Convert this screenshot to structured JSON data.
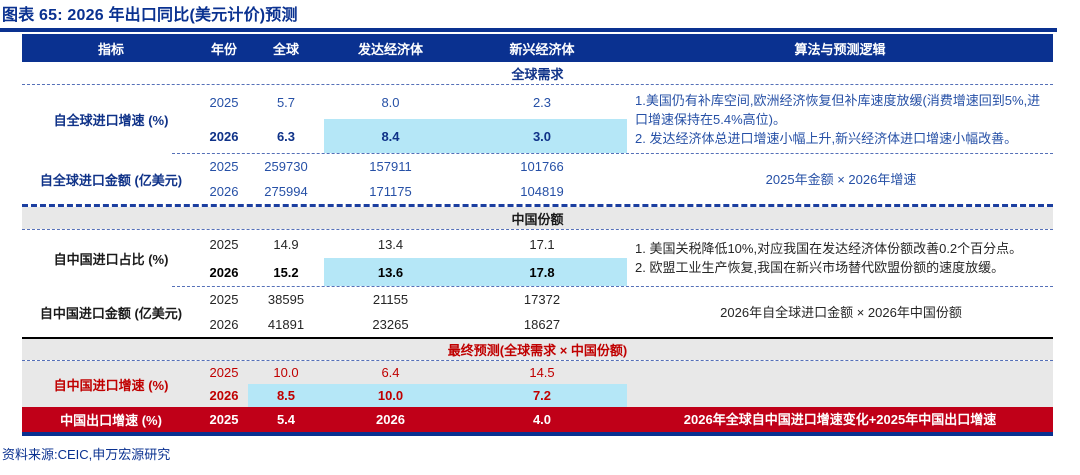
{
  "title": "图表 65:  2026 年出口同比(美元计价)预测",
  "source": "资料来源:CEIC,申万宏源研究",
  "colors": {
    "header_bg": "#0a3190",
    "highlight_cyan": "#b5e7f7",
    "section_gray": "#e8e8e8",
    "final_row_bg": "#c00018",
    "red_text": "#c00000",
    "blue_text": "#0f3288"
  },
  "table": {
    "headers": [
      "指标",
      "年份",
      "全球",
      "发达经济体",
      "新兴经济体",
      "算法与预测逻辑"
    ],
    "bands": {
      "global_demand": "全球需求",
      "china_share": "中国份额",
      "final_forecast": "最终预测(全球需求 × 中国份额)"
    },
    "groups": [
      {
        "indicator": "自全球进口增速 (%)",
        "rows": [
          {
            "year": "2025",
            "global": "5.7",
            "developed": "8.0",
            "emerging": "2.3"
          },
          {
            "year": "2026",
            "global": "6.3",
            "developed": "8.4",
            "emerging": "3.0"
          }
        ],
        "logic": [
          "1.美国仍有补库空间,欧洲经济恢复但补库速度放缓(消费增速回到5%,进口增速保持在5.4%高位)。",
          "2. 发达经济体总进口增速小幅上升,新兴经济体进口增速小幅改善。"
        ]
      },
      {
        "indicator": "自全球进口金额 (亿美元)",
        "rows": [
          {
            "year": "2025",
            "global": "259730",
            "developed": "157911",
            "emerging": "101766"
          },
          {
            "year": "2026",
            "global": "275994",
            "developed": "171175",
            "emerging": "104819"
          }
        ],
        "logic": [
          "2025年金额 × 2026年增速"
        ]
      },
      {
        "indicator": "自中国进口占比 (%)",
        "rows": [
          {
            "year": "2025",
            "global": "14.9",
            "developed": "13.4",
            "emerging": "17.1"
          },
          {
            "year": "2026",
            "global": "15.2",
            "developed": "13.6",
            "emerging": "17.8"
          }
        ],
        "logic": [
          "1. 美国关税降低10%,对应我国在发达经济体份额改善0.2个百分点。",
          "2. 欧盟工业生产恢复,我国在新兴市场替代欧盟份额的速度放缓。"
        ]
      },
      {
        "indicator": "自中国进口金额 (亿美元)",
        "rows": [
          {
            "year": "2025",
            "global": "38595",
            "developed": "21155",
            "emerging": "17372"
          },
          {
            "year": "2026",
            "global": "41891",
            "developed": "23265",
            "emerging": "18627"
          }
        ],
        "logic": [
          "2026年自全球进口金额 × 2026年中国份额"
        ]
      },
      {
        "indicator": "自中国进口增速 (%)",
        "rows": [
          {
            "year": "2025",
            "global": "10.0",
            "developed": "6.4",
            "emerging": "14.5"
          },
          {
            "year": "2026",
            "global": "8.5",
            "developed": "10.0",
            "emerging": "7.2"
          }
        ],
        "logic": []
      }
    ],
    "final_row": {
      "indicator": "中国出口增速 (%)",
      "year": "2025",
      "global": "5.4",
      "developed": "2026",
      "emerging": "4.0",
      "logic": "2026年全球自中国进口增速变化+2025年中国出口增速"
    }
  }
}
